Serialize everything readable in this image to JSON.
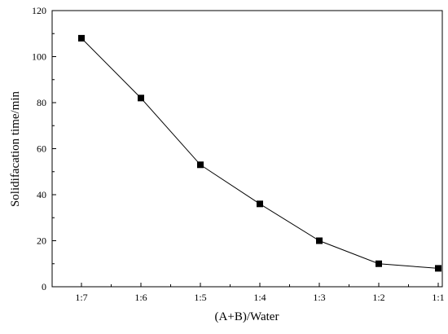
{
  "chart_data": {
    "type": "line",
    "title": "",
    "xlabel": "(A+B)/Water",
    "ylabel": "Solidifacation time/min",
    "categories": [
      "1:7",
      "1:6",
      "1:5",
      "1:4",
      "1:3",
      "1:2",
      "1:1"
    ],
    "series": [
      {
        "values": [
          108,
          82,
          53,
          36,
          20,
          10,
          8
        ]
      }
    ],
    "ylim": [
      0,
      120
    ],
    "yticks": [
      0,
      20,
      40,
      60,
      80,
      100,
      120
    ],
    "grid": false,
    "legend": "none",
    "marker": "square",
    "line_color": "#000000",
    "marker_color": "#000000"
  }
}
